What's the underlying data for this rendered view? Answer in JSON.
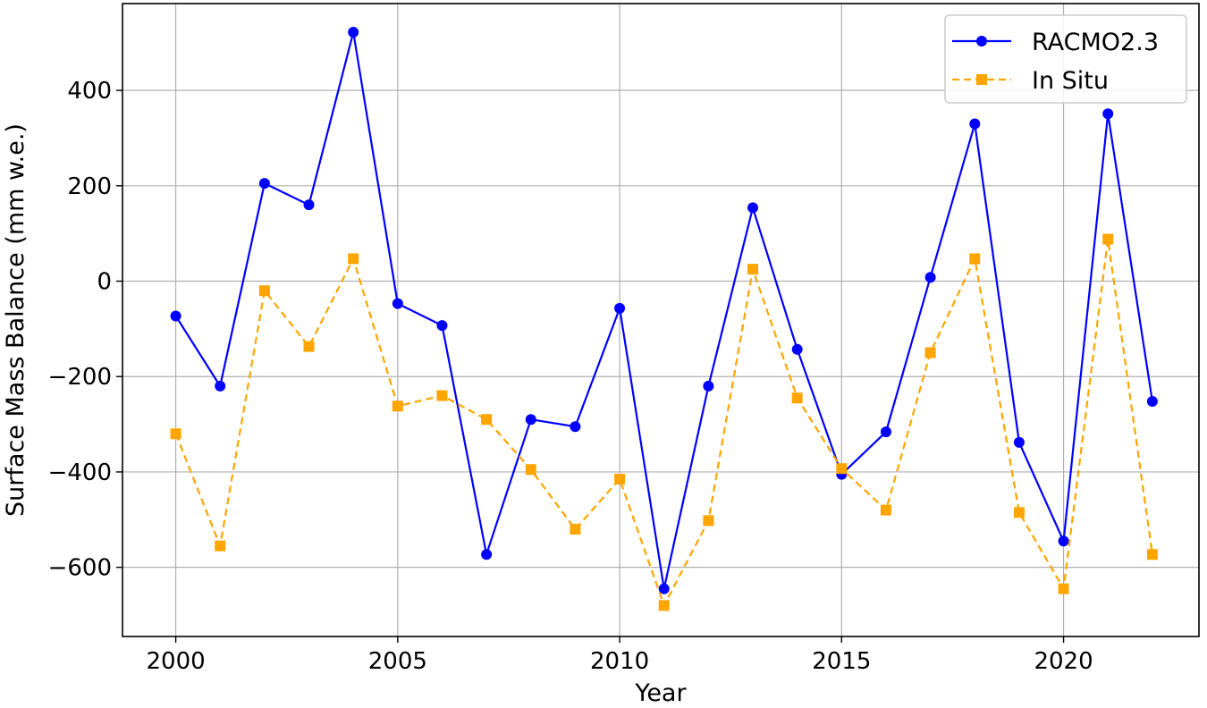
{
  "chart_data": {
    "type": "line",
    "title": "",
    "xlabel": "Year",
    "ylabel": "Surface Mass Balance (mm w.e.)",
    "x": [
      2000,
      2001,
      2002,
      2003,
      2004,
      2005,
      2006,
      2007,
      2008,
      2009,
      2010,
      2011,
      2012,
      2013,
      2014,
      2015,
      2016,
      2017,
      2018,
      2019,
      2020,
      2021,
      2022
    ],
    "xlim": [
      1998.8,
      2023.05
    ],
    "ylim": [
      -745,
      582
    ],
    "xticks": [
      2000,
      2005,
      2010,
      2015,
      2020
    ],
    "xtick_labels": [
      "2000",
      "2005",
      "2010",
      "2015",
      "2020"
    ],
    "yticks": [
      -600,
      -400,
      -200,
      0,
      200,
      400
    ],
    "ytick_labels": [
      "−600",
      "−400",
      "−200",
      "0",
      "200",
      "400"
    ],
    "grid": true,
    "legend_position": "top-right",
    "series": [
      {
        "name": "RACMO2.3",
        "color": "#0000ff",
        "line_style": "solid",
        "marker": "circle",
        "values": [
          -73,
          -220,
          205,
          160,
          522,
          -47,
          -93,
          -573,
          -290,
          -305,
          -57,
          -645,
          -220,
          154,
          -143,
          -405,
          -316,
          8,
          330,
          -338,
          -545,
          351,
          -252
        ]
      },
      {
        "name": "In Situ",
        "color": "#ffa500",
        "line_style": "dashed",
        "marker": "square",
        "values": [
          -320,
          -555,
          -20,
          -137,
          47,
          -262,
          -240,
          -290,
          -395,
          -520,
          -415,
          -680,
          -502,
          25,
          -245,
          -393,
          -480,
          -150,
          47,
          -485,
          -645,
          88,
          -573
        ]
      }
    ]
  }
}
